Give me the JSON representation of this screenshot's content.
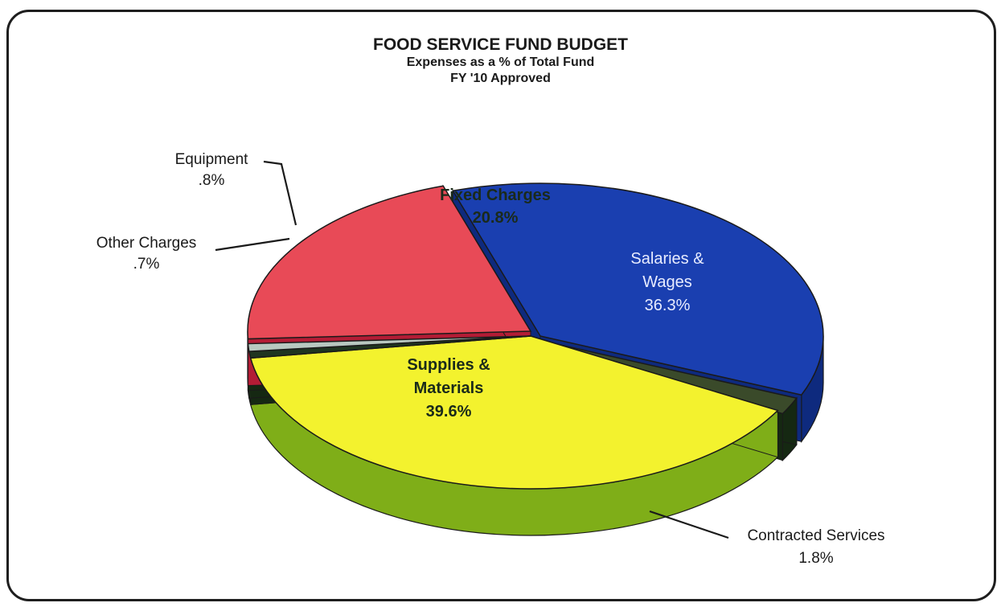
{
  "chart_data": {
    "type": "pie",
    "title": "FOOD SERVICE FUND BUDGET",
    "subtitle": "Expenses as a % of Total Fund",
    "subtitle2": "FY '10 Approved",
    "slices": [
      {
        "label": "Salaries &",
        "label2": "Wages",
        "value": 36.3,
        "value_label": "36.3%",
        "color": "#1a3fb0",
        "side": "#0e2a7e",
        "text_color": "#e8ecff"
      },
      {
        "label": "Contracted Services",
        "label2": "",
        "value": 1.8,
        "value_label": "1.8%",
        "color": "#3a4a2a",
        "side": "#152812",
        "text_color": "#1a1a1a"
      },
      {
        "label": "Supplies &",
        "label2": "Materials",
        "value": 39.6,
        "value_label": "39.6%",
        "color": "#f3f22e",
        "side": "#7fae18",
        "text_color": "#1a2a1a"
      },
      {
        "label": "Other Charges",
        "label2": "",
        "value": 0.7,
        "value_label": ".7%",
        "color": "#1f3520",
        "side": "#152812",
        "text_color": "#1a1a1a"
      },
      {
        "label": "Equipment",
        "label2": "",
        "value": 0.8,
        "value_label": ".8%",
        "color": "#b9c8c0",
        "side": "#152812",
        "text_color": "#1a1a1a"
      },
      {
        "label": "Fixed Charges",
        "label2": "",
        "value": 20.8,
        "value_label": "20.8%",
        "color": "#e84a57",
        "side": "#b31c35",
        "text_color": "#1a2a1a"
      }
    ]
  }
}
